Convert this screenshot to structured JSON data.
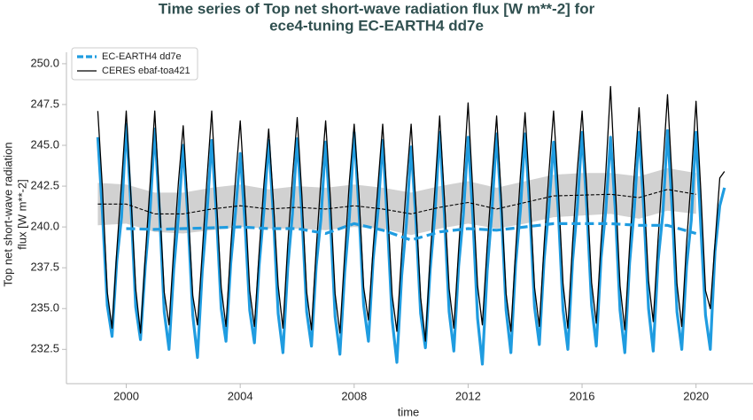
{
  "chart_data": {
    "type": "line",
    "title": [
      "Time series of Top net short-wave radiation flux [W m**-2] for",
      "ece4-tuning EC-EARTH4 dd7e"
    ],
    "xlabel": "time",
    "ylabel": [
      "Top net short-wave radiation",
      "flux [W m**-2]"
    ],
    "xlim": [
      1997.9,
      2022.0
    ],
    "xticks": [
      2000,
      2004,
      2008,
      2012,
      2016,
      2020
    ],
    "ylim": [
      230.4,
      250.7
    ],
    "yticks": [
      232.5,
      {
        "value": 235,
        "label": "235.0"
      },
      237.5,
      {
        "value": 240,
        "label": "240.0"
      },
      242.5,
      {
        "value": 245,
        "label": "245.0"
      },
      247.5,
      {
        "value": 250,
        "label": "250.0"
      }
    ],
    "grid": false,
    "legend": "upper left",
    "x": [
      1999,
      1999.167,
      1999.333,
      1999.5,
      1999.667,
      1999.833,
      2000,
      2000.167,
      2000.333,
      2000.5,
      2000.667,
      2000.833,
      2001,
      2001.167,
      2001.333,
      2001.5,
      2001.667,
      2001.833,
      2002,
      2002.167,
      2002.333,
      2002.5,
      2002.667,
      2002.833,
      2003,
      2003.167,
      2003.333,
      2003.5,
      2003.667,
      2003.833,
      2004,
      2004.167,
      2004.333,
      2004.5,
      2004.667,
      2004.833,
      2005,
      2005.167,
      2005.333,
      2005.5,
      2005.667,
      2005.833,
      2006,
      2006.167,
      2006.333,
      2006.5,
      2006.667,
      2006.833,
      2007,
      2007.167,
      2007.333,
      2007.5,
      2007.667,
      2007.833,
      2008,
      2008.167,
      2008.333,
      2008.5,
      2008.667,
      2008.833,
      2009,
      2009.167,
      2009.333,
      2009.5,
      2009.667,
      2009.833,
      2010,
      2010.167,
      2010.333,
      2010.5,
      2010.667,
      2010.833,
      2011,
      2011.167,
      2011.333,
      2011.5,
      2011.667,
      2011.833,
      2012,
      2012.167,
      2012.333,
      2012.5,
      2012.667,
      2012.833,
      2013,
      2013.167,
      2013.333,
      2013.5,
      2013.667,
      2013.833,
      2014,
      2014.167,
      2014.333,
      2014.5,
      2014.667,
      2014.833,
      2015,
      2015.167,
      2015.333,
      2015.5,
      2015.667,
      2015.833,
      2016,
      2016.167,
      2016.333,
      2016.5,
      2016.667,
      2016.833,
      2017,
      2017.167,
      2017.333,
      2017.5,
      2017.667,
      2017.833,
      2018,
      2018.167,
      2018.333,
      2018.5,
      2018.667,
      2018.833,
      2019,
      2019.167,
      2019.333,
      2019.5,
      2019.667,
      2019.833,
      2020,
      2020.167,
      2020.333,
      2020.5,
      2020.667,
      2020.833,
      2021
    ],
    "series": [
      {
        "name": "EC-EARTH4 dd7e",
        "color": "#1f9ce0",
        "values": [
          245.5,
          240.8,
          235.2,
          233.3,
          237.9,
          240.6,
          246.3,
          241.2,
          235.1,
          233.1,
          237.6,
          240.9,
          246.0,
          240.9,
          234.8,
          232.5,
          237.4,
          240.7,
          245.0,
          240.5,
          234.6,
          232.0,
          237.3,
          240.8,
          245.3,
          240.7,
          235.0,
          233.0,
          237.8,
          240.9,
          244.5,
          240.3,
          234.9,
          232.9,
          237.7,
          241.0,
          245.3,
          240.6,
          234.7,
          232.3,
          237.5,
          240.8,
          245.4,
          240.8,
          234.8,
          232.7,
          237.6,
          240.5,
          245.2,
          240.4,
          234.5,
          232.2,
          237.2,
          240.6,
          245.8,
          241.0,
          235.2,
          233.0,
          238.0,
          240.9,
          245.3,
          240.3,
          234.3,
          231.7,
          237.0,
          240.2,
          244.9,
          240.4,
          234.7,
          232.6,
          237.4,
          240.7,
          245.8,
          240.8,
          234.8,
          232.4,
          237.6,
          240.8,
          245.5,
          240.6,
          234.4,
          231.6,
          237.3,
          240.9,
          245.7,
          240.9,
          234.9,
          232.3,
          237.7,
          241.0,
          245.7,
          241.0,
          235.1,
          232.8,
          238.0,
          241.1,
          245.2,
          240.9,
          234.9,
          232.5,
          237.9,
          241.2,
          245.8,
          241.2,
          235.2,
          232.7,
          238.1,
          241.0,
          245.5,
          241.0,
          234.9,
          232.3,
          237.8,
          241.1,
          245.8,
          241.1,
          235.0,
          232.4,
          237.9,
          240.8,
          245.9,
          241.0,
          234.8,
          232.5,
          237.6,
          240.4,
          245.8,
          240.0,
          234.6,
          232.5,
          238.5,
          241.3,
          242.4
        ],
        "mean_x": [
          2000,
          2001,
          2002,
          2003,
          2004,
          2005,
          2006,
          2007,
          2008,
          2009,
          2010,
          2011,
          2012,
          2013,
          2014,
          2015,
          2016,
          2017,
          2018,
          2019,
          2020
        ],
        "mean_values": [
          239.9,
          239.85,
          239.9,
          239.95,
          240.0,
          239.9,
          239.9,
          239.6,
          240.2,
          239.8,
          239.2,
          239.7,
          239.9,
          239.8,
          240.0,
          240.2,
          240.2,
          240.2,
          240.1,
          240.1,
          239.6
        ]
      },
      {
        "name": "CERES ebaf-toa421",
        "color": "#000000",
        "values": [
          247.1,
          242.3,
          236.0,
          233.8,
          238.5,
          242.7,
          247.1,
          241.8,
          236.2,
          233.5,
          238.2,
          242.5,
          247.1,
          241.5,
          236.0,
          234.0,
          238.6,
          242.8,
          246.2,
          241.2,
          235.8,
          234.0,
          238.4,
          242.9,
          247.1,
          241.6,
          236.3,
          233.9,
          238.8,
          242.9,
          246.5,
          241.8,
          236.1,
          233.9,
          238.5,
          242.6,
          246.0,
          241.5,
          236.4,
          233.8,
          238.9,
          243.0,
          246.7,
          241.9,
          236.0,
          233.7,
          238.6,
          242.9,
          246.5,
          241.7,
          235.9,
          233.5,
          238.3,
          242.8,
          246.3,
          242.0,
          236.3,
          234.3,
          238.7,
          242.5,
          246.3,
          241.4,
          235.8,
          233.6,
          238.4,
          242.6,
          246.3,
          241.3,
          235.7,
          233.0,
          238.2,
          242.3,
          246.8,
          241.8,
          236.2,
          233.8,
          238.6,
          243.0,
          247.6,
          242.1,
          236.4,
          234.0,
          238.8,
          242.9,
          246.8,
          241.6,
          235.9,
          233.6,
          238.5,
          243.1,
          247.0,
          242.0,
          236.3,
          233.9,
          238.9,
          243.2,
          247.1,
          242.2,
          236.5,
          233.8,
          239.0,
          243.5,
          247.1,
          242.3,
          236.6,
          234.1,
          239.1,
          243.3,
          248.6,
          242.5,
          236.4,
          233.7,
          238.8,
          243.2,
          247.3,
          242.4,
          236.7,
          234.2,
          239.2,
          243.6,
          248.1,
          242.6,
          236.5,
          233.9,
          239.0,
          243.0,
          247.7,
          242.2,
          236.1,
          235.0,
          239.0,
          243.0,
          243.4
        ],
        "mean_x": [
          1999,
          2000,
          2001,
          2002,
          2003,
          2004,
          2005,
          2006,
          2007,
          2008,
          2009,
          2010,
          2011,
          2012,
          2013,
          2014,
          2015,
          2016,
          2017,
          2018,
          2019,
          2020
        ],
        "mean_values": [
          241.4,
          241.4,
          240.8,
          240.8,
          241.1,
          241.3,
          241.1,
          241.2,
          241.1,
          241.3,
          241.1,
          240.8,
          241.2,
          241.5,
          241.1,
          241.5,
          241.9,
          241.95,
          242.0,
          241.8,
          242.3,
          242.0
        ],
        "mean_lower": [
          240.1,
          240.2,
          239.7,
          239.6,
          239.8,
          240.0,
          239.9,
          239.9,
          239.8,
          240.0,
          239.9,
          239.5,
          239.9,
          240.2,
          239.9,
          240.2,
          240.6,
          240.7,
          240.8,
          240.5,
          241.0,
          240.8
        ],
        "mean_upper": [
          242.7,
          242.6,
          242.1,
          242.1,
          242.4,
          242.6,
          242.3,
          242.5,
          242.4,
          242.6,
          242.4,
          242.1,
          242.5,
          242.8,
          242.4,
          242.8,
          243.2,
          243.3,
          243.3,
          243.1,
          243.6,
          243.3
        ]
      }
    ]
  }
}
